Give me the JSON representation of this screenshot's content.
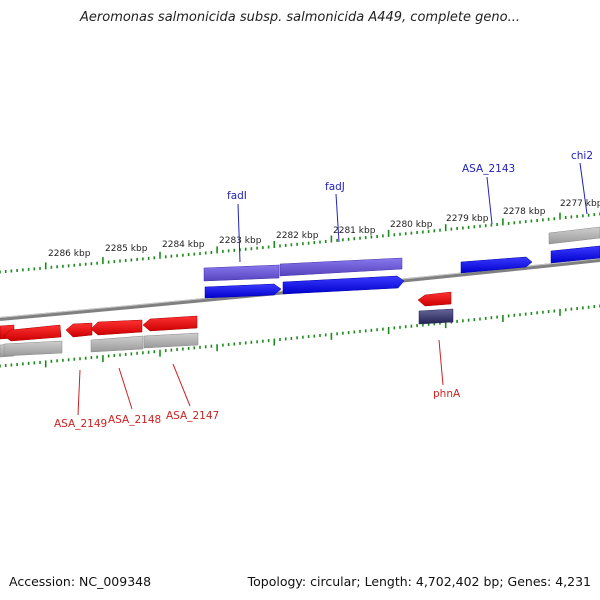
{
  "title": "Aeromonas salmonicida subsp. salmonicida A449, complete geno...",
  "footer": {
    "accession": "Accession: NC_009348",
    "summary": "Topology: circular; Length: 4,702,402 bp; Genes: 4,231"
  },
  "colors": {
    "forward_gene": "#1010ee",
    "forward_gene_light": "#6655dd",
    "reverse_gene": "#ee1111",
    "reverse_gene_dark": "#333377",
    "rna_gray": "#aaaaaa",
    "tick": "#1a8a1a",
    "backbone": "#888888",
    "forward_label": "#2222bb",
    "reverse_label": "#cc2222"
  },
  "scale": {
    "unit": "kbp",
    "labels": [
      "2286 kbp",
      "2285 kbp",
      "2284 kbp",
      "2283 kbp",
      "2282 kbp",
      "2281 kbp",
      "2280 kbp",
      "2279 kbp",
      "2278 kbp",
      "2277 kbp"
    ]
  },
  "forward_labels": [
    "fadI",
    "fadJ",
    "ASA_2143",
    "chi2"
  ],
  "reverse_labels": [
    "ASA_2149",
    "ASA_2148",
    "ASA_2147",
    "phnA"
  ]
}
